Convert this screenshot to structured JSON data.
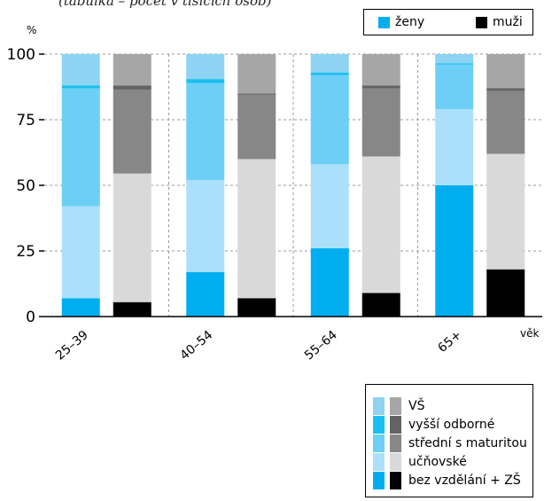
{
  "subtitle": "(tabulka – počet v tisících osob)",
  "legend_top": {
    "women_label": "ženy",
    "men_label": "muži"
  },
  "legend_bottom": {
    "items": [
      {
        "label": "VŠ",
        "women_color": "#8ed3f2",
        "men_color": "#a6a6a6"
      },
      {
        "label": "vyšší odborné",
        "women_color": "#19bff0",
        "men_color": "#636363"
      },
      {
        "label": "střední s maturitou",
        "women_color": "#6dcff6",
        "men_color": "#878787"
      },
      {
        "label": "učňovské",
        "women_color": "#abe0fa",
        "men_color": "#d9d9d9"
      },
      {
        "label": "bez vzdělání + ZŠ",
        "women_color": "#00aeef",
        "men_color": "#000000"
      }
    ]
  },
  "chart_data": {
    "type": "bar",
    "stacked": true,
    "y_unit_label": "%",
    "xlabel": "věk",
    "ylim": [
      0,
      100
    ],
    "yticks": [
      0,
      25,
      50,
      75,
      100
    ],
    "categories": [
      "25–39",
      "40–54",
      "55–64",
      "65+"
    ],
    "segments_bottom_to_top": [
      "bez vzdělání + ZŠ",
      "učňovské",
      "střední s maturitou",
      "vyšší odborné",
      "VŠ"
    ],
    "series": [
      {
        "name": "ženy",
        "colors": [
          "#00aeef",
          "#abe0fa",
          "#6dcff6",
          "#19bff0",
          "#8ed3f2"
        ],
        "stacks": [
          [
            7,
            35,
            45,
            1,
            12
          ],
          [
            17,
            35,
            37,
            1.5,
            9.5
          ],
          [
            26,
            32,
            34,
            1,
            7
          ],
          [
            50,
            29,
            17,
            0.5,
            3.5
          ]
        ]
      },
      {
        "name": "muži",
        "colors": [
          "#000000",
          "#d9d9d9",
          "#878787",
          "#636363",
          "#a6a6a6"
        ],
        "stacks": [
          [
            5.5,
            49,
            32,
            1.5,
            12
          ],
          [
            7,
            53,
            24.5,
            0.5,
            15
          ],
          [
            9,
            52,
            26,
            1,
            12
          ],
          [
            18,
            44,
            24,
            1,
            13
          ]
        ]
      }
    ],
    "grid": true
  }
}
